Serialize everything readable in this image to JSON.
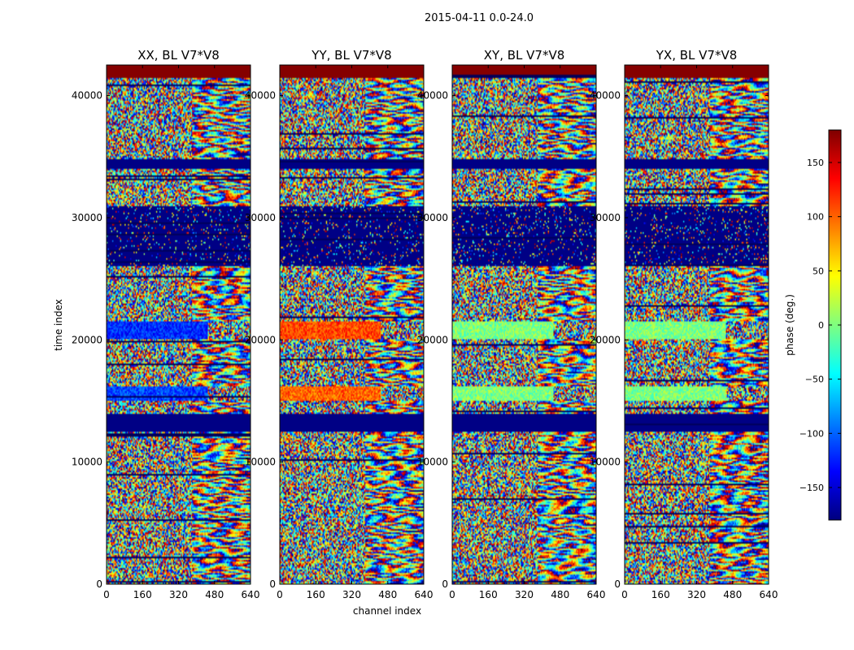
{
  "chart_data": {
    "type": "heatmap",
    "title": "2015-04-11 0.0-24.0",
    "xlabel": "channel index",
    "ylabel": "time index",
    "xlim": [
      0,
      640
    ],
    "ylim": [
      0,
      42500
    ],
    "xticks": [
      0,
      160,
      320,
      480,
      640
    ],
    "yticks": [
      0,
      10000,
      20000,
      30000,
      40000
    ],
    "panels": [
      {
        "title": "XX, BL V7*V8",
        "polarization": "XX"
      },
      {
        "title": "YY, BL V7*V8",
        "polarization": "YY"
      },
      {
        "title": "XY, BL V7*V8",
        "polarization": "XY"
      },
      {
        "title": "YX, BL V7*V8",
        "polarization": "YX"
      }
    ],
    "colorbar": {
      "label": "phase (deg.)",
      "range": [
        -180,
        180
      ],
      "ticks": [
        150,
        100,
        50,
        0,
        -50,
        -100,
        -150
      ],
      "tick_labels": [
        "150",
        "100",
        "50",
        "0",
        "−50",
        "−100",
        "−150"
      ],
      "colormap": "jet",
      "colors": [
        "#00007f",
        "#0000ff",
        "#007fff",
        "#00ffff",
        "#7fff7f",
        "#ffff00",
        "#ff7f00",
        "#ff0000",
        "#7f0000"
      ]
    },
    "bands": [
      {
        "t0": 41500,
        "t1": 42500,
        "kind": "solid",
        "phase": 178
      },
      {
        "t0": 34000,
        "t1": 34800,
        "kind": "solid",
        "phase": -178
      },
      {
        "t0": 26000,
        "t1": 31000,
        "kind": "mostly_solid",
        "phase": -178
      },
      {
        "t0": 12500,
        "t1": 14000,
        "kind": "solid",
        "phase": -178
      },
      {
        "t0": 20000,
        "t1": 21500,
        "kind": "tinted",
        "phases": {
          "XX": -120,
          "YY": 110,
          "XY": 0,
          "YX": 0
        }
      },
      {
        "t0": 15000,
        "t1": 16200,
        "kind": "tinted",
        "phases": {
          "XX": -110,
          "YY": 100,
          "XY": 0,
          "YX": 0
        }
      }
    ]
  }
}
